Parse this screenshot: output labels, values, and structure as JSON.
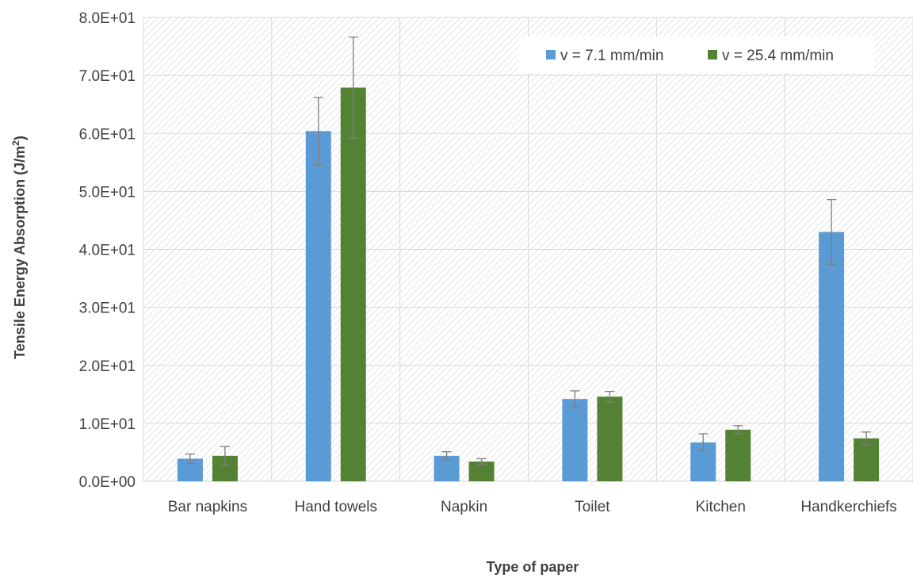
{
  "chart_data": {
    "type": "bar",
    "title": "",
    "xlabel": "Type of paper",
    "ylabel": "Tensile Energy Absorption (J/m²)",
    "ylim": [
      0,
      80
    ],
    "yticks": [
      0,
      10,
      20,
      30,
      40,
      50,
      60,
      70,
      80
    ],
    "ytick_labels": [
      "0.0E+00",
      "1.0E+01",
      "2.0E+01",
      "3.0E+01",
      "4.0E+01",
      "5.0E+01",
      "6.0E+01",
      "7.0E+01",
      "8.0E+01"
    ],
    "categories": [
      "Bar napkins",
      "Hand towels",
      "Napkin",
      "Toilet",
      "Kitchen",
      "Handkerchiefs"
    ],
    "series": [
      {
        "name": "v = 7.1 mm/min",
        "color": "#5b9bd5",
        "values": [
          3.9,
          60.4,
          4.4,
          14.2,
          6.7,
          43.0
        ],
        "error": [
          0.8,
          5.8,
          0.7,
          1.4,
          1.5,
          5.6
        ]
      },
      {
        "name": "v = 25.4 mm/min",
        "color": "#548235",
        "values": [
          4.4,
          67.9,
          3.4,
          14.6,
          8.9,
          7.4
        ],
        "error": [
          1.6,
          8.7,
          0.5,
          0.9,
          0.7,
          1.1
        ]
      }
    ],
    "grid": true,
    "legend_position": "top-right",
    "plot_background": "diagonal-hatch"
  }
}
